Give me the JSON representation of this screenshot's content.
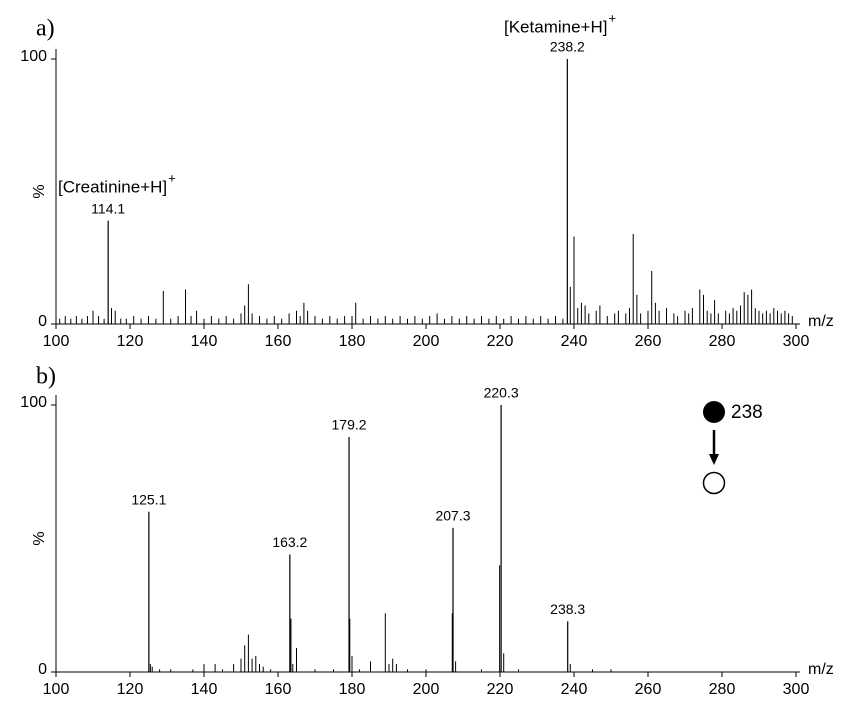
{
  "chart_data": [
    {
      "type": "spectrum",
      "panel_label": "a)",
      "xlabel": "m/z",
      "ylabel": "%",
      "color": "#000000",
      "xlim": [
        100,
        300
      ],
      "ylim": [
        0,
        100
      ],
      "xticks": [
        100,
        120,
        140,
        160,
        180,
        200,
        220,
        240,
        260,
        280,
        300
      ],
      "yticks": [
        0,
        100
      ],
      "labeled_peaks": [
        [
          114.1,
          39
        ],
        [
          238.2,
          100
        ]
      ],
      "annotations": [
        {
          "text": "[Creatinine+H]",
          "sup": "+",
          "color": "#1a1adb"
        },
        {
          "text": "[Ketamine+H]",
          "sup": "+",
          "color": "#e3202a"
        }
      ],
      "peaks": [
        [
          101,
          2
        ],
        [
          102.5,
          3
        ],
        [
          104,
          2
        ],
        [
          105.5,
          3
        ],
        [
          107,
          2
        ],
        [
          108.5,
          3
        ],
        [
          110,
          5
        ],
        [
          111.5,
          3
        ],
        [
          113,
          2
        ],
        [
          115,
          6
        ],
        [
          116,
          5
        ],
        [
          117.5,
          2
        ],
        [
          119,
          2
        ],
        [
          121,
          3
        ],
        [
          123,
          2
        ],
        [
          125,
          3
        ],
        [
          127,
          2
        ],
        [
          129,
          12.5
        ],
        [
          131,
          2
        ],
        [
          133,
          3
        ],
        [
          135,
          13
        ],
        [
          136.5,
          3
        ],
        [
          138,
          5
        ],
        [
          140,
          2
        ],
        [
          142,
          3
        ],
        [
          144,
          2
        ],
        [
          146,
          3
        ],
        [
          148,
          2
        ],
        [
          150,
          4
        ],
        [
          151,
          7
        ],
        [
          152,
          15
        ],
        [
          153,
          4
        ],
        [
          155,
          3
        ],
        [
          157,
          2
        ],
        [
          159,
          3
        ],
        [
          161,
          2
        ],
        [
          163,
          4
        ],
        [
          165,
          5
        ],
        [
          166,
          3
        ],
        [
          167,
          8
        ],
        [
          168,
          5
        ],
        [
          170,
          3
        ],
        [
          172,
          2
        ],
        [
          174,
          3
        ],
        [
          176,
          2
        ],
        [
          178,
          3
        ],
        [
          180,
          3
        ],
        [
          181,
          8
        ],
        [
          183,
          2
        ],
        [
          185,
          3
        ],
        [
          187,
          2
        ],
        [
          189,
          3
        ],
        [
          191,
          2
        ],
        [
          193,
          3
        ],
        [
          195,
          2
        ],
        [
          197,
          3
        ],
        [
          199,
          2
        ],
        [
          201,
          3
        ],
        [
          203,
          4
        ],
        [
          205,
          2
        ],
        [
          207,
          3
        ],
        [
          209,
          2
        ],
        [
          211,
          3
        ],
        [
          213,
          2
        ],
        [
          215,
          3
        ],
        [
          217,
          2
        ],
        [
          219,
          3
        ],
        [
          221,
          2
        ],
        [
          223,
          3
        ],
        [
          225,
          2
        ],
        [
          227,
          3
        ],
        [
          229,
          2
        ],
        [
          231,
          3
        ],
        [
          233,
          2
        ],
        [
          235,
          3
        ],
        [
          237,
          2
        ],
        [
          239,
          14
        ],
        [
          240,
          33
        ],
        [
          241,
          6
        ],
        [
          242,
          8
        ],
        [
          243,
          7
        ],
        [
          244,
          4
        ],
        [
          246,
          5
        ],
        [
          247,
          7
        ],
        [
          249,
          3
        ],
        [
          251,
          4
        ],
        [
          252,
          5
        ],
        [
          254,
          4
        ],
        [
          255,
          6
        ],
        [
          256,
          34
        ],
        [
          257,
          11
        ],
        [
          258,
          4
        ],
        [
          260,
          5
        ],
        [
          261,
          20
        ],
        [
          262,
          8
        ],
        [
          263,
          5
        ],
        [
          265,
          6
        ],
        [
          267,
          4
        ],
        [
          268,
          3
        ],
        [
          270,
          5
        ],
        [
          271,
          4
        ],
        [
          272,
          6
        ],
        [
          274,
          13
        ],
        [
          275,
          11
        ],
        [
          276,
          5
        ],
        [
          277,
          4
        ],
        [
          278,
          9
        ],
        [
          279,
          4
        ],
        [
          281,
          5
        ],
        [
          282,
          4
        ],
        [
          283,
          6
        ],
        [
          284,
          5
        ],
        [
          285,
          7
        ],
        [
          286,
          12
        ],
        [
          287,
          11
        ],
        [
          288,
          13
        ],
        [
          289,
          6
        ],
        [
          290,
          5
        ],
        [
          291,
          4
        ],
        [
          292,
          5
        ],
        [
          293,
          4
        ],
        [
          294,
          6
        ],
        [
          295,
          5
        ],
        [
          296,
          4
        ],
        [
          297,
          5
        ],
        [
          298,
          4
        ],
        [
          299,
          3
        ]
      ]
    },
    {
      "type": "spectrum",
      "panel_label": "b)",
      "xlabel": "m/z",
      "ylabel": "%",
      "color": "#000000",
      "xlim": [
        100,
        300
      ],
      "ylim": [
        0,
        100
      ],
      "xticks": [
        100,
        120,
        140,
        160,
        180,
        200,
        220,
        240,
        260,
        280,
        300
      ],
      "yticks": [
        0,
        100
      ],
      "icon_label": "238",
      "labeled_peaks": [
        [
          125.1,
          60
        ],
        [
          163.2,
          44
        ],
        [
          179.2,
          88
        ],
        [
          207.3,
          54
        ],
        [
          220.3,
          100
        ],
        [
          238.3,
          19
        ]
      ],
      "peaks": [
        [
          125.5,
          3
        ],
        [
          126,
          2
        ],
        [
          128,
          1
        ],
        [
          131,
          1
        ],
        [
          137,
          1
        ],
        [
          140,
          3
        ],
        [
          143,
          3
        ],
        [
          145,
          1
        ],
        [
          148,
          3
        ],
        [
          150,
          5
        ],
        [
          151,
          10
        ],
        [
          152,
          14
        ],
        [
          153,
          5
        ],
        [
          154,
          6
        ],
        [
          155,
          3
        ],
        [
          156,
          2
        ],
        [
          158,
          1
        ],
        [
          163.5,
          20
        ],
        [
          164,
          3
        ],
        [
          165,
          9
        ],
        [
          170,
          1
        ],
        [
          175,
          1
        ],
        [
          179.4,
          20
        ],
        [
          180,
          6
        ],
        [
          182,
          1
        ],
        [
          185,
          4
        ],
        [
          189,
          22
        ],
        [
          190,
          3
        ],
        [
          191,
          5
        ],
        [
          192,
          3
        ],
        [
          195,
          1
        ],
        [
          200,
          1
        ],
        [
          207.1,
          22
        ],
        [
          208,
          4
        ],
        [
          215,
          1
        ],
        [
          219.9,
          40
        ],
        [
          221,
          7
        ],
        [
          225,
          1
        ],
        [
          239,
          3
        ],
        [
          245,
          1
        ],
        [
          250,
          1
        ]
      ]
    }
  ]
}
